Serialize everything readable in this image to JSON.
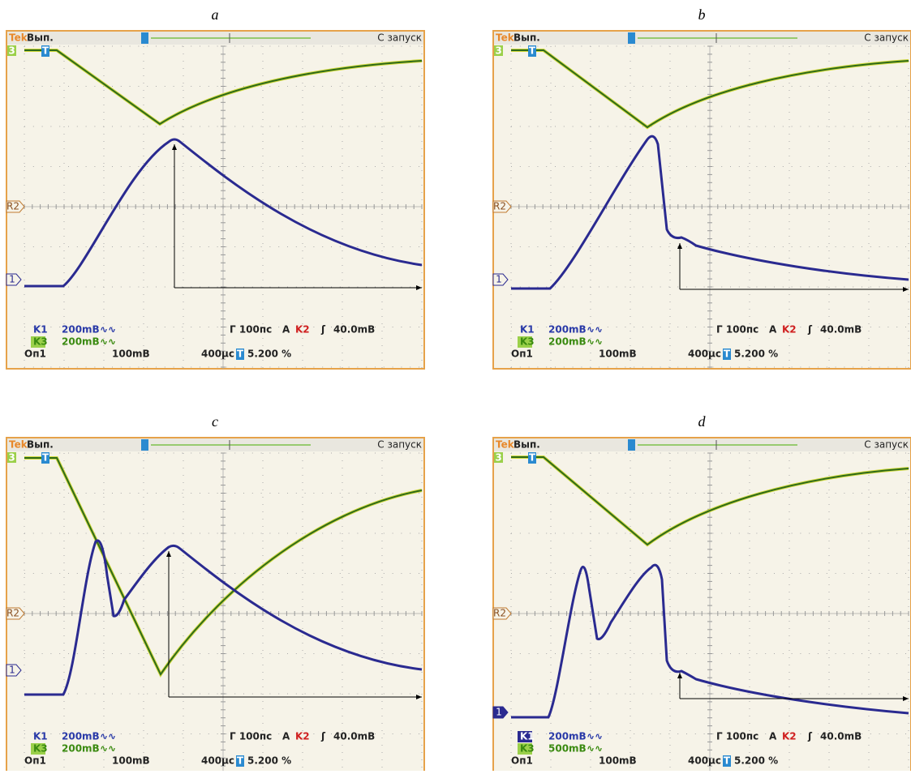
{
  "panels": [
    {
      "label": "a",
      "header": {
        "brand": "Tek",
        "mode": "Вып.",
        "status": "С запуск"
      },
      "markers": {
        "channel3": "3",
        "trigger": "T",
        "reference": "R2",
        "channel1": "1"
      },
      "readout": {
        "ch1_name": "K1",
        "ch1_scale": "200mВ",
        "ch1_coupling": "∿∿",
        "ch3_name": "K3",
        "ch3_scale": "200mВ",
        "ch3_coupling": "∿∿",
        "math_name": "Оп1",
        "math_scale": "100mВ",
        "timebase": "400µс",
        "trigger_icon": "T",
        "trigger_position": "5.200 %",
        "holdoff": "Г 100пс",
        "acq": "A",
        "trigger_source": "K2",
        "slope": "ʃ",
        "trigger_level": "40.0mВ"
      }
    },
    {
      "label": "b",
      "header": {
        "brand": "Tek",
        "mode": "Вып.",
        "status": "С запуск"
      },
      "markers": {
        "channel3": "3",
        "trigger": "T",
        "reference": "R2",
        "channel1": "1"
      },
      "readout": {
        "ch1_name": "K1",
        "ch1_scale": "200mВ",
        "ch1_coupling": "∿∿",
        "ch3_name": "K3",
        "ch3_scale": "200mВ",
        "ch3_coupling": "∿∿",
        "math_name": "Оп1",
        "math_scale": "100mВ",
        "timebase": "400µс",
        "trigger_icon": "T",
        "trigger_position": "5.200 %",
        "holdoff": "Г 100пс",
        "acq": "A",
        "trigger_source": "K2",
        "slope": "ʃ",
        "trigger_level": "40.0mВ"
      }
    },
    {
      "label": "c",
      "header": {
        "brand": "Tek",
        "mode": "Вып.",
        "status": "С запуск"
      },
      "markers": {
        "channel3": "3",
        "trigger": "T",
        "reference": "R2",
        "channel1": "1"
      },
      "readout": {
        "ch1_name": "K1",
        "ch1_scale": "200mВ",
        "ch1_coupling": "∿∿",
        "ch3_name": "K3",
        "ch3_scale": "200mВ",
        "ch3_coupling": "∿∿",
        "math_name": "Оп1",
        "math_scale": "100mВ",
        "timebase": "400µс",
        "trigger_icon": "T",
        "trigger_position": "5.200 %",
        "holdoff": "Г 100пс",
        "acq": "A",
        "trigger_source": "K2",
        "slope": "ʃ",
        "trigger_level": "40.0mВ"
      }
    },
    {
      "label": "d",
      "header": {
        "brand": "Tek",
        "mode": "Вып.",
        "status": "С запуск"
      },
      "markers": {
        "channel3": "3",
        "trigger": "T",
        "reference": "R2",
        "channel1": "1"
      },
      "readout": {
        "ch1_name": "K1",
        "ch1_scale": "200mВ",
        "ch1_coupling": "∿∿",
        "ch3_name": "K3",
        "ch3_scale": "500mВ",
        "ch3_coupling": "∿∿",
        "math_name": "Оп1",
        "math_scale": "100mВ",
        "timebase": "400µс",
        "trigger_icon": "T",
        "trigger_position": "5.200 %",
        "holdoff": "Г 100пс",
        "acq": "A",
        "trigger_source": "K2",
        "slope": "ʃ",
        "trigger_level": "40.0mВ"
      }
    }
  ]
}
